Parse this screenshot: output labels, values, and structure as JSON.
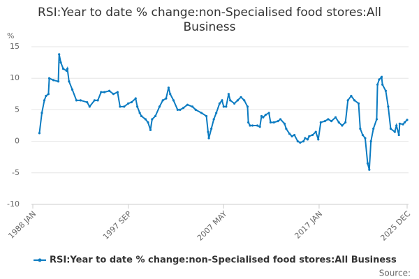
{
  "chart_data": {
    "type": "line",
    "title": "RSI:Year to date % change:non-Specialised food stores:All Business",
    "y_label": "%",
    "source": "Source:",
    "x": [
      "1988 SEP",
      "1988 DEC",
      "1989 MAR",
      "1989 MAY",
      "1989 AUG",
      "1989 SEP",
      "1990 FEB",
      "1990 AUG",
      "1990 SEP",
      "1990 NOV",
      "1991 FEB",
      "1991 JUN",
      "1991 JUL",
      "1991 SEP",
      "1992 JAN",
      "1992 JUN",
      "1992 NOV",
      "1993 JUL",
      "1993 OCT",
      "1994 APR",
      "1994 AUG",
      "1994 DEC",
      "1995 APR",
      "1995 OCT",
      "1996 MAR",
      "1996 AUG",
      "1996 NOV",
      "1997 APR",
      "1997 SEP",
      "1998 JAN",
      "1998 JUN",
      "1998 AUG",
      "1998 NOV",
      "1999 JAN",
      "1999 JUN",
      "1999 SEP",
      "1999 DEC",
      "2000 FEB",
      "2000 JUN",
      "2000 NOV",
      "2001 MAR",
      "2001 JUL",
      "2001 OCT",
      "2001 DEC",
      "2002 APR",
      "2002 SEP",
      "2002 DEC",
      "2003 APR",
      "2003 SEP",
      "2004 MAR",
      "2004 JUL",
      "2005 FEB",
      "2005 AUG",
      "2005 OCT",
      "2005 NOV",
      "2006 FEB",
      "2006 MAY",
      "2006 AUG",
      "2006 DEC",
      "2007 MAR",
      "2007 MAY",
      "2007 AUG",
      "2007 NOV",
      "2008 JAN",
      "2008 JUN",
      "2008 OCT",
      "2009 FEB",
      "2009 JUN",
      "2009 OCT",
      "2009 NOV",
      "2010 JAN",
      "2010 APR",
      "2010 OCT",
      "2011 JAN",
      "2011 MAR",
      "2011 MAY",
      "2011 AUG",
      "2011 DEC",
      "2012 FEB",
      "2012 JUN",
      "2012 NOV",
      "2013 FEB",
      "2013 JUL",
      "2013 SEP",
      "2014 JAN",
      "2014 APR",
      "2014 JUL",
      "2014 NOV",
      "2015 FEB",
      "2015 JUN",
      "2015 AUG",
      "2015 NOV",
      "2016 JAN",
      "2016 MAY",
      "2016 SEP",
      "2016 DEC",
      "2017 MAR",
      "2017 AUG",
      "2017 DEC",
      "2018 APR",
      "2018 SEP",
      "2019 JAN",
      "2019 MAY",
      "2019 SEP",
      "2019 DEC",
      "2020 APR",
      "2020 AUG",
      "2021 JAN",
      "2021 MAR",
      "2021 JUN",
      "2021 SEP",
      "2021 DEC",
      "2022 FEB",
      "2022 APR",
      "2022 JUL",
      "2022 NOV",
      "2022 DEC",
      "2023 FEB",
      "2023 MAY",
      "2023 JUN",
      "2023 OCT",
      "2024 JAN",
      "2024 APR",
      "2024 SEP",
      "2024 NOV",
      "2025 FEB",
      "2025 MAR",
      "2025 JUL",
      "2025 SEP",
      "2025 DEC"
    ],
    "series": [
      {
        "name": "RSI:Year to date % change:non-Specialised food stores:All Business",
        "color": "#0b7bc1",
        "values": [
          1.3,
          4.5,
          6.5,
          7.2,
          7.5,
          10,
          9.7,
          9.5,
          13.8,
          12.5,
          11.5,
          11.2,
          11.5,
          9.5,
          8.2,
          6.5,
          6.5,
          6.2,
          5.5,
          6.5,
          6.5,
          7.8,
          7.8,
          8,
          7.5,
          7.8,
          5.5,
          5.5,
          6,
          6.2,
          6.8,
          5.5,
          4.5,
          4,
          3.5,
          3,
          1.8,
          3.5,
          4,
          5.5,
          6.5,
          6.8,
          8.5,
          7.5,
          6.5,
          5,
          5,
          5.3,
          5.8,
          5.5,
          5,
          4.5,
          4,
          1.5,
          0.5,
          2,
          3.5,
          4.5,
          6,
          6.5,
          5.5,
          5.5,
          7.5,
          6.5,
          6,
          6.5,
          7,
          6.5,
          5.5,
          3,
          2.5,
          2.5,
          2.5,
          2.3,
          4,
          3.8,
          4.2,
          4.5,
          3,
          3,
          3.2,
          3.5,
          2.8,
          2,
          1.2,
          0.8,
          1,
          0,
          -0.2,
          0,
          0.5,
          0.3,
          0.8,
          1,
          1.5,
          0.3,
          3,
          3.2,
          3.5,
          3.2,
          3.8,
          3,
          2.5,
          3,
          6.5,
          7.2,
          6.5,
          6,
          2,
          1,
          0.5,
          -3.5,
          -4.5,
          0,
          2,
          3.5,
          9,
          9.8,
          10.2,
          9,
          8,
          5.5,
          2,
          1.5,
          2.5,
          1,
          2.8,
          2.7,
          3,
          3.4
        ]
      }
    ],
    "xlim": [
      "1988 JAN",
      "2025 DEC"
    ],
    "xticks": [
      "1988 JAN",
      "1997 SEP",
      "2007 MAY",
      "2017 JAN",
      "2025 DEC"
    ],
    "ylim": [
      -10,
      15
    ],
    "yticks": [
      -10,
      -5,
      0,
      5,
      10,
      15
    ],
    "grid": true,
    "legend": "bottom"
  }
}
